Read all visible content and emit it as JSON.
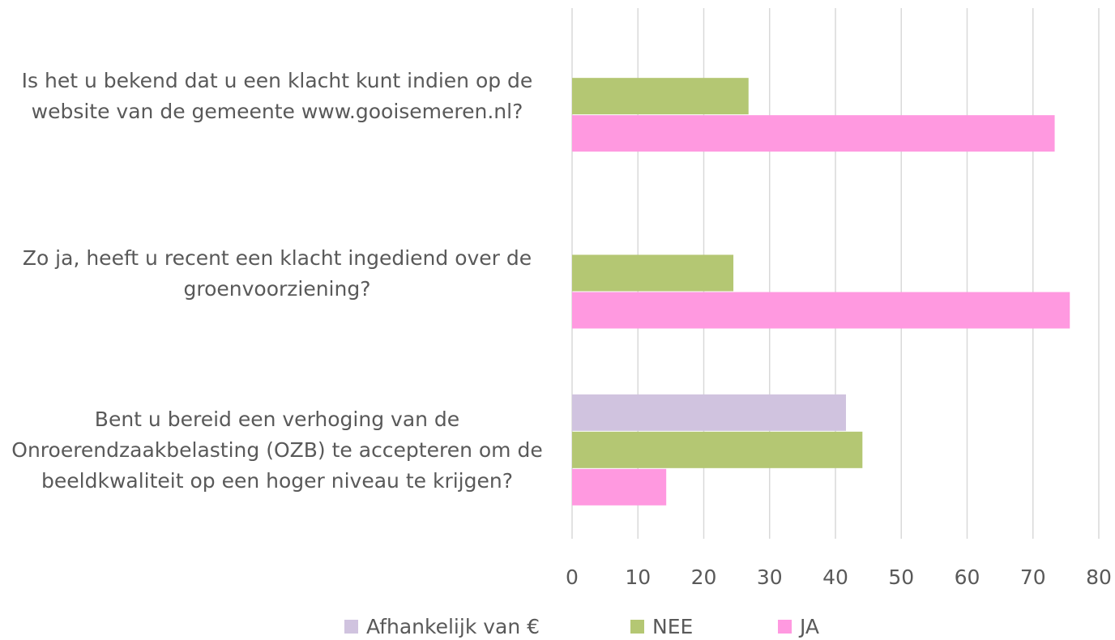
{
  "chart_data": {
    "type": "bar",
    "orientation": "horizontal",
    "categories": [
      "Is het u bekend dat u een klacht kunt indien op de website van de gemeente www.gooisemeren.nl?",
      "Zo ja, heeft u recent een klacht ingediend over de groenvoorziening?",
      "Bent u bereid een verhoging van de Onroerendzaakbelasting (OZB) te accepteren om de beeldkwaliteit op een hoger niveau te krijgen?"
    ],
    "series": [
      {
        "name": "Afhankelijk van €",
        "color": "#d0c3df",
        "values": [
          null,
          null,
          41.6
        ]
      },
      {
        "name": "NEE",
        "color": "#b4c773",
        "values": [
          26.8,
          24.5,
          44.1
        ]
      },
      {
        "name": "JA",
        "color": "#ff99e0",
        "values": [
          73.3,
          75.6,
          14.3
        ]
      }
    ],
    "xlim": [
      0,
      80
    ],
    "xticks": [
      0,
      10,
      20,
      30,
      40,
      50,
      60,
      70,
      80
    ],
    "grid": true,
    "legend": "bottom"
  }
}
